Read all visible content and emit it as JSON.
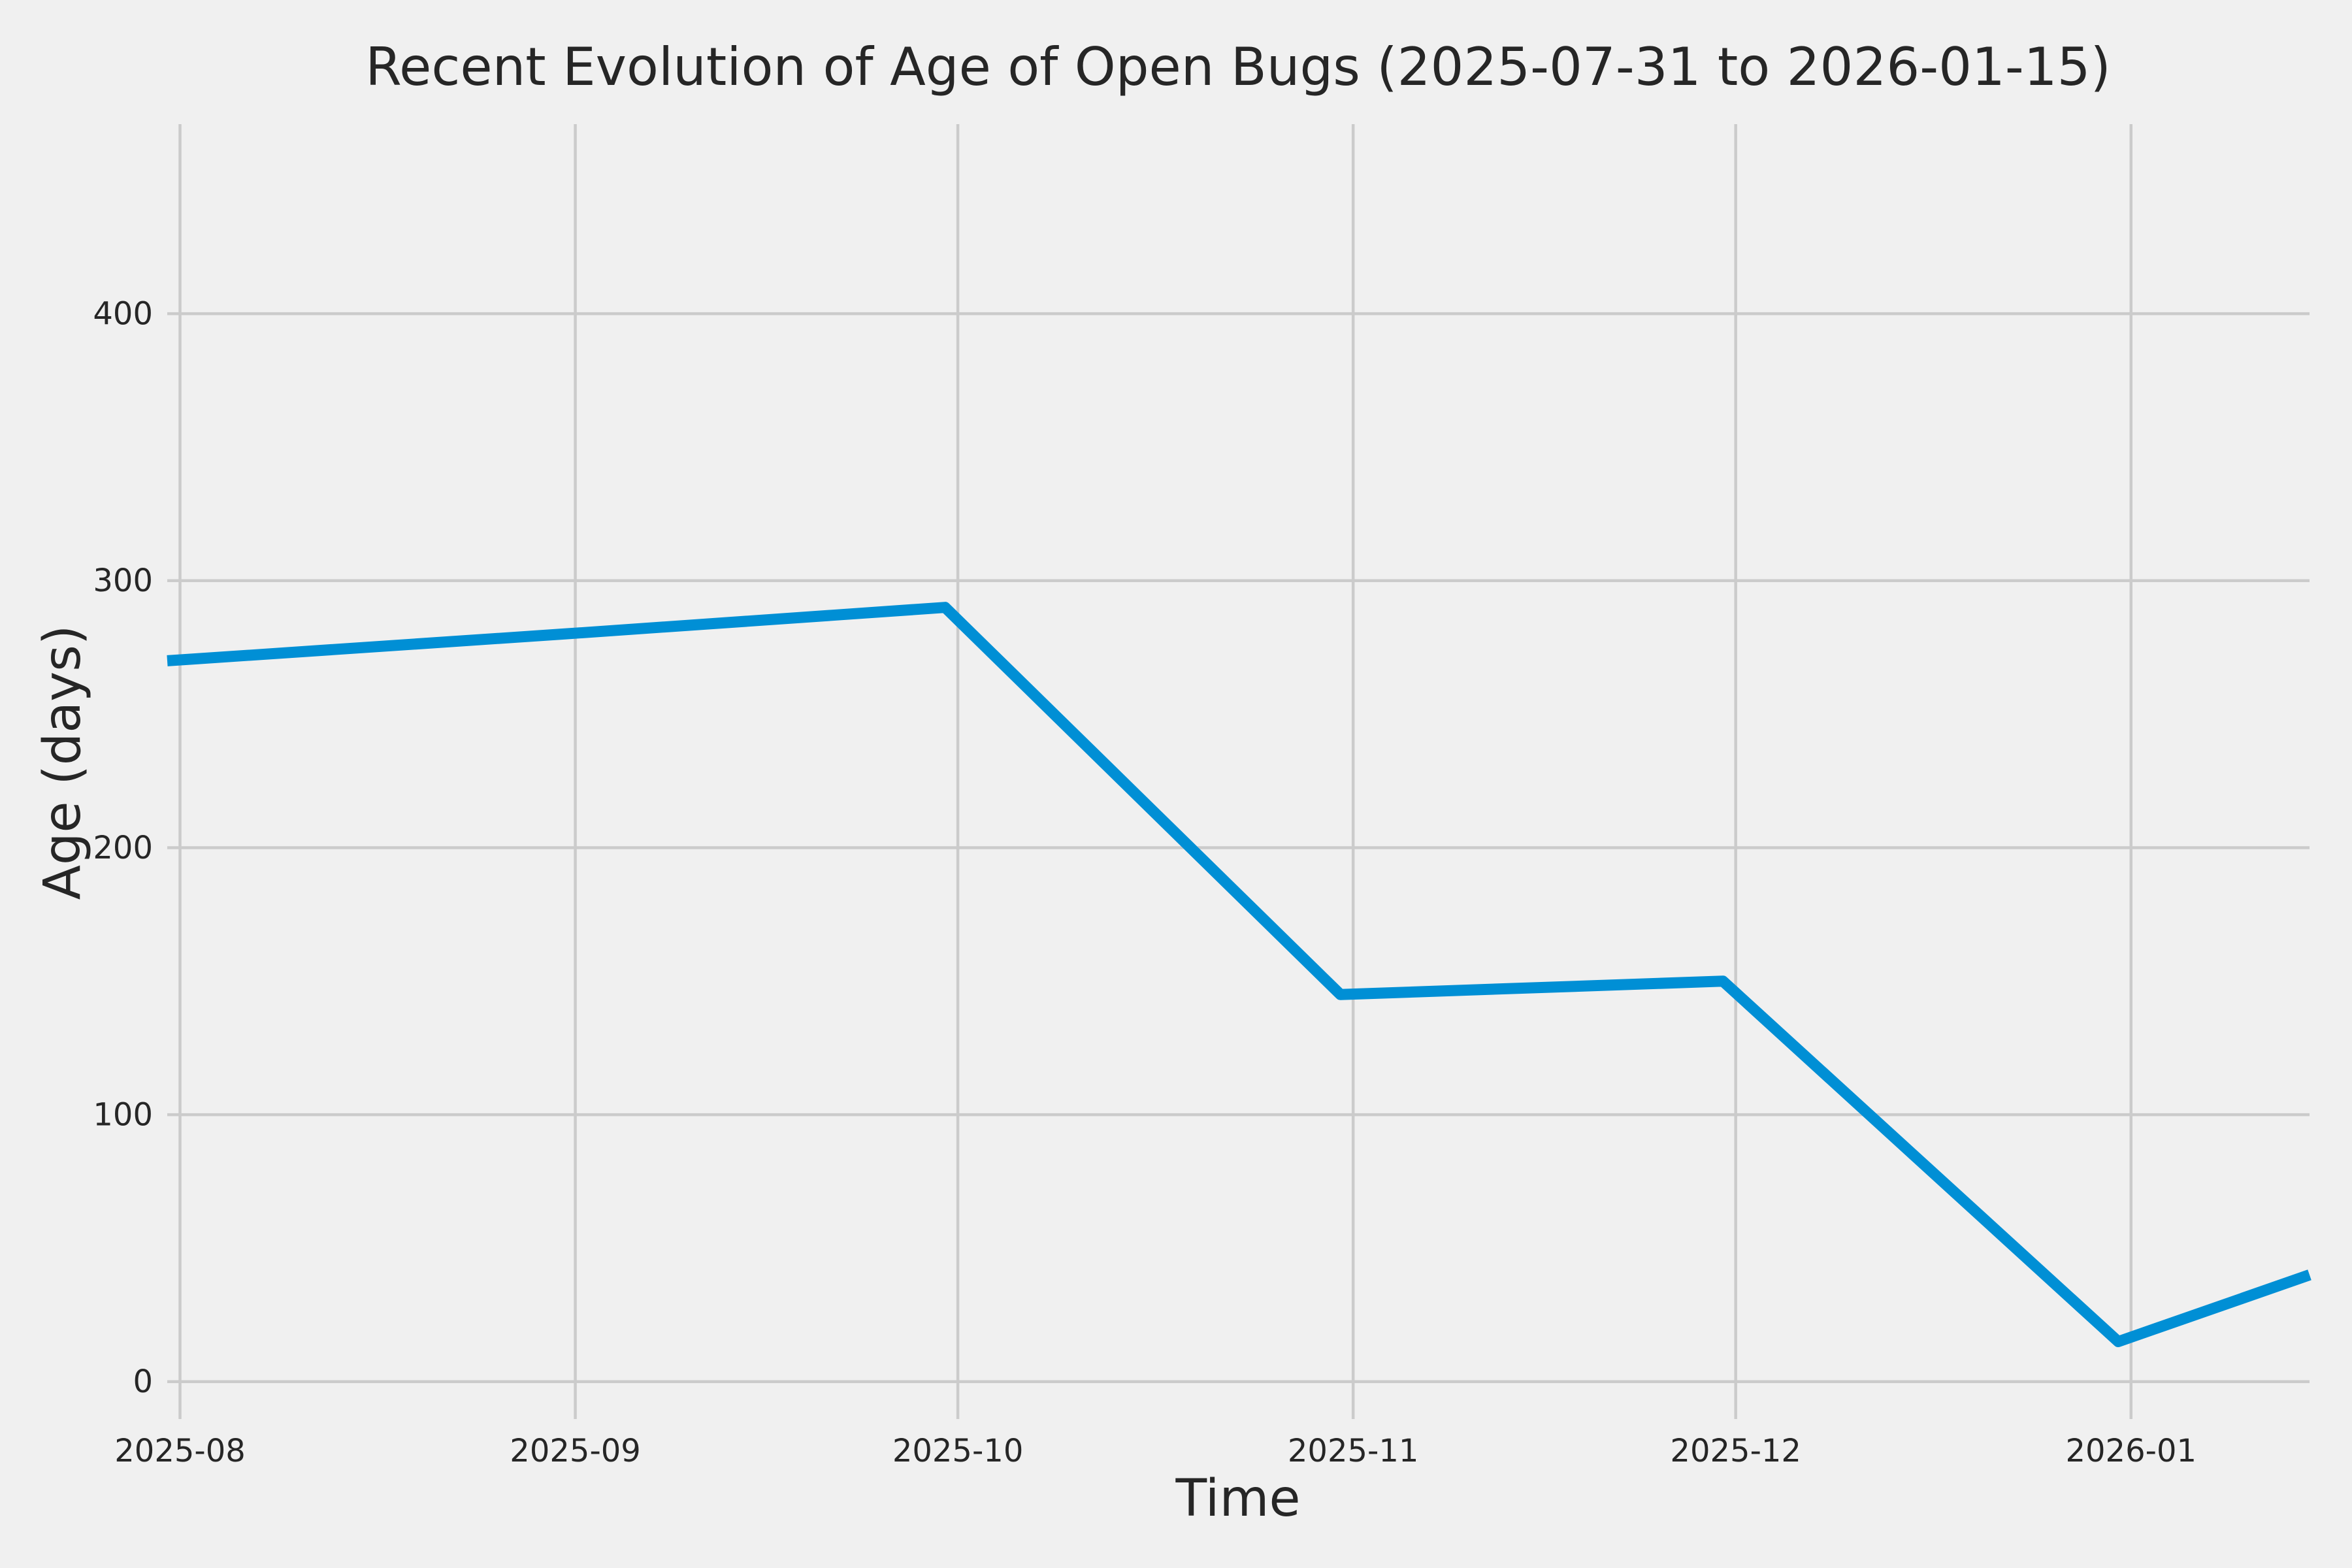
{
  "chart_data": {
    "type": "line",
    "title": "Recent Evolution of Age of Open Bugs (2025-07-31 to 2026-01-15)",
    "xlabel": "Time",
    "ylabel": "Age (days)",
    "date_range": {
      "start": "2025-07-31",
      "end": "2026-01-15"
    },
    "grid": true,
    "legend_visible": false,
    "xlim_days": [
      0,
      168
    ],
    "ylim": [
      -14,
      471
    ],
    "x_ticks": [
      {
        "label": "2025-08",
        "day": 1
      },
      {
        "label": "2025-09",
        "day": 32
      },
      {
        "label": "2025-10",
        "day": 62
      },
      {
        "label": "2025-11",
        "day": 93
      },
      {
        "label": "2025-12",
        "day": 123
      },
      {
        "label": "2026-01",
        "day": 154
      }
    ],
    "y_ticks": [
      0,
      100,
      200,
      300,
      400
    ],
    "series": [
      {
        "name": "Age of Open Bugs",
        "color": "#008fd5",
        "points": [
          {
            "date": "2025-07-31",
            "day": 0,
            "value": 270
          },
          {
            "date": "2025-08-31",
            "day": 31,
            "value": 280
          },
          {
            "date": "2025-09-30",
            "day": 61,
            "value": 290
          },
          {
            "date": "2025-10-31",
            "day": 92,
            "value": 145
          },
          {
            "date": "2025-11-30",
            "day": 122,
            "value": 150
          },
          {
            "date": "2025-12-31",
            "day": 153,
            "value": 15
          },
          {
            "date": "2026-01-15",
            "day": 168,
            "value": 40
          }
        ]
      }
    ]
  },
  "style": {
    "background": "#f0f0f0",
    "grid_color": "#cbcbcb",
    "text_color": "#262626",
    "line_color": "#008fd5",
    "line_width": 17,
    "grid_width": 4.5
  }
}
